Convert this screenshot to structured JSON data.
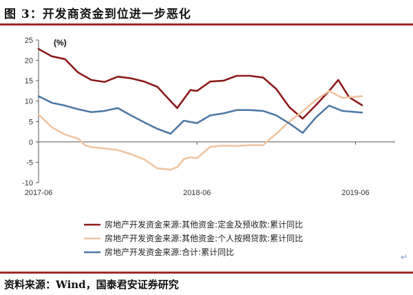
{
  "figure": {
    "title": "图 3：开发商资金到位进一步恶化",
    "source": "资料来源：Wind，国泰君安证券研究"
  },
  "chart_data": {
    "type": "line",
    "unit_label": "(%)",
    "ylim": [
      -10,
      25
    ],
    "yticks": [
      -10,
      -5,
      0,
      5,
      10,
      15,
      20,
      25
    ],
    "xlim": [
      0,
      27
    ],
    "xticks": [
      {
        "x": 0,
        "label": "2017-06"
      },
      {
        "x": 12,
        "label": "2018-06"
      },
      {
        "x": 24,
        "label": "2019-06"
      }
    ],
    "grid": false,
    "legend_position": "bottom",
    "series": [
      {
        "name": "房地产开发资金来源:其他资金:定金及预收款:累计同比",
        "color": "#8b1a1a",
        "points": [
          [
            0,
            22.8
          ],
          [
            1,
            21
          ],
          [
            2,
            20.3
          ],
          [
            3,
            17
          ],
          [
            4,
            15.2
          ],
          [
            5,
            14.7
          ],
          [
            6,
            16
          ],
          [
            7,
            15.6
          ],
          [
            8,
            14.8
          ],
          [
            9,
            13.5
          ],
          [
            10,
            10
          ],
          [
            10.5,
            8.3
          ],
          [
            11.5,
            12.7
          ],
          [
            12,
            12.5
          ],
          [
            13,
            14.8
          ],
          [
            14,
            15
          ],
          [
            15,
            16.2
          ],
          [
            16,
            16.2
          ],
          [
            17,
            15.8
          ],
          [
            18,
            13
          ],
          [
            19,
            8.5
          ],
          [
            20,
            5.7
          ],
          [
            21,
            9
          ],
          [
            22,
            12.5
          ],
          [
            22.7,
            15.2
          ],
          [
            23.5,
            11
          ],
          [
            24.5,
            9
          ]
        ]
      },
      {
        "name": "房地产开发资金来源:其他资金:个人按揭贷款:累计同比",
        "color": "#f0c4a0",
        "points": [
          [
            0,
            6.7
          ],
          [
            1,
            3.6
          ],
          [
            2,
            1.8
          ],
          [
            3,
            0.8
          ],
          [
            3.5,
            -0.8
          ],
          [
            4,
            -1.3
          ],
          [
            5,
            -1.6
          ],
          [
            6,
            -2
          ],
          [
            7,
            -3
          ],
          [
            8,
            -4.3
          ],
          [
            9,
            -6.5
          ],
          [
            10,
            -6.8
          ],
          [
            10.5,
            -6.2
          ],
          [
            11,
            -4.2
          ],
          [
            11.5,
            -3.8
          ],
          [
            12,
            -4
          ],
          [
            13,
            -1.2
          ],
          [
            14,
            -0.9
          ],
          [
            15,
            -1
          ],
          [
            16,
            -0.8
          ],
          [
            17,
            -0.8
          ],
          [
            18,
            2
          ],
          [
            19,
            5
          ],
          [
            20,
            7.5
          ],
          [
            21,
            10.3
          ],
          [
            22,
            12.5
          ],
          [
            23,
            10.8
          ],
          [
            24.5,
            11.2
          ]
        ]
      },
      {
        "name": "房地产开发资金来源:合计:累计同比",
        "color": "#4d79a6",
        "points": [
          [
            0,
            11.2
          ],
          [
            1,
            9.6
          ],
          [
            2,
            8.9
          ],
          [
            3,
            8
          ],
          [
            4,
            7.3
          ],
          [
            5,
            7.6
          ],
          [
            6,
            8.3
          ],
          [
            7,
            6.5
          ],
          [
            8,
            4.8
          ],
          [
            9,
            3.2
          ],
          [
            10,
            2
          ],
          [
            11,
            5.2
          ],
          [
            12,
            4.6
          ],
          [
            13,
            6.5
          ],
          [
            14,
            7
          ],
          [
            15,
            7.8
          ],
          [
            16,
            7.8
          ],
          [
            17,
            7.6
          ],
          [
            18,
            6.5
          ],
          [
            19,
            4.5
          ],
          [
            20,
            2.2
          ],
          [
            21,
            6
          ],
          [
            22,
            8.9
          ],
          [
            23,
            7.6
          ],
          [
            24.5,
            7.2
          ]
        ]
      }
    ]
  }
}
